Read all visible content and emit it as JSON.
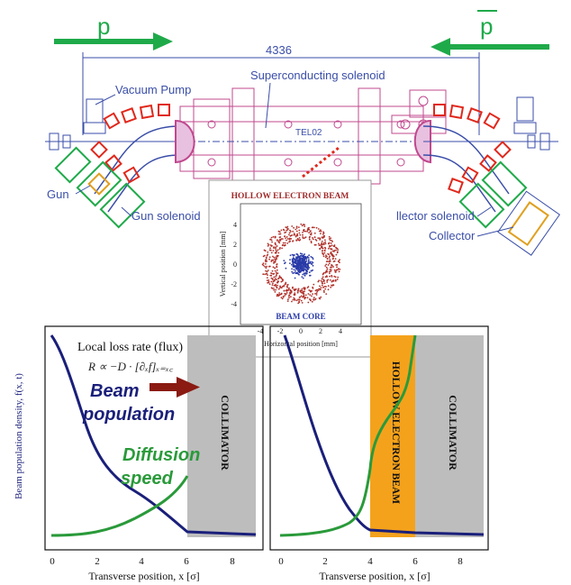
{
  "colors": {
    "arrow_green": "#1faa4a",
    "drawing_blue": "#3a4ea8",
    "magenta": "#c0488e",
    "red": "#e0281c",
    "beam_red": "#b0302a",
    "core_blue": "#2a3ba8",
    "population_navy": "#1a1f7a",
    "diffusion_green": "#2a9a3a",
    "collimator_gray": "#bdbdbd",
    "hollow_orange": "#f4a21c"
  },
  "top": {
    "proton_label": "p",
    "antiproton_label": "p",
    "dimension_label": "4336",
    "labels": {
      "vacuum_pump": "Vacuum Pump",
      "superconducting_solenoid": "Superconducting solenoid",
      "telo2": "TEL02",
      "gun": "Gun",
      "gun_solenoid": "Gun solenoid",
      "collector_solenoid": "llector solenoid",
      "collector": "Collector"
    }
  },
  "inset": {
    "title": "HOLLOW ELECTRON BEAM",
    "core_label": "BEAM CORE",
    "xlabel": "Horizontal position [mm]",
    "ylabel": "Vertical position [mm]",
    "x_ticks": [
      "-4",
      "-2",
      "0",
      "2",
      "4"
    ],
    "y_ticks": [
      "4",
      "2",
      "0",
      "-2",
      "-4"
    ]
  },
  "left_plot": {
    "ylabel": "Beam population density, f(x, t)",
    "xlabel": "Transverse position, x [σ]",
    "x_ticks": [
      "0",
      "2",
      "4",
      "6",
      "8"
    ],
    "loss_rate_title": "Local loss rate (flux)",
    "formula": "R ∝ −D · [∂ₓf]ₓ₌ₓ꜀",
    "beam_population_label_1": "Beam",
    "beam_population_label_2": "population",
    "diffusion_label_1": "Diffusion",
    "diffusion_label_2": "speed",
    "collimator_label": "COLLIMATOR"
  },
  "right_plot": {
    "xlabel": "Transverse position, x [σ]",
    "x_ticks": [
      "0",
      "2",
      "4",
      "6",
      "8"
    ],
    "hollow_label": "HOLLOW ELECTRON BEAM",
    "collimator_label": "COLLIMATOR"
  }
}
